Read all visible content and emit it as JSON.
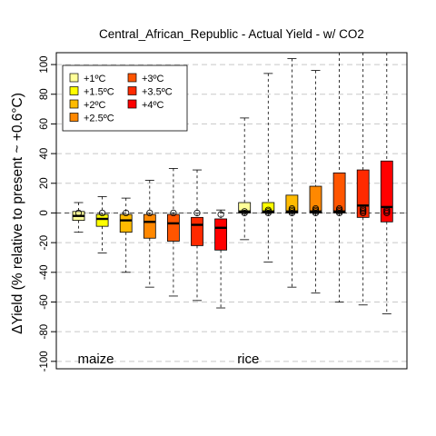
{
  "chart_data": {
    "type": "box",
    "title": "Central_African_Republic - Actual Yield - w/ CO2",
    "xlabel": "",
    "ylabel": "ΔYield (% relative to present ~ +0.6°C)",
    "ylim": [
      -105,
      108
    ],
    "yticks": [
      -100,
      -80,
      -60,
      -40,
      -20,
      0,
      20,
      40,
      60,
      80,
      100
    ],
    "grid": true,
    "legend_position": "top-left",
    "groups": [
      {
        "label": "maize",
        "first_index": 0,
        "last_index": 6
      },
      {
        "label": "rice",
        "first_index": 7,
        "last_index": 13
      }
    ],
    "legend": [
      {
        "label": "+1ºC",
        "color": "#FFFF99"
      },
      {
        "label": "+1.5ºC",
        "color": "#FFFF00"
      },
      {
        "label": "+2ºC",
        "color": "#FFBB00"
      },
      {
        "label": "+2.5ºC",
        "color": "#FF8800"
      },
      {
        "label": "+3ºC",
        "color": "#FF5500"
      },
      {
        "label": "+3.5ºC",
        "color": "#FF2A00"
      },
      {
        "label": "+4ºC",
        "color": "#FF0000"
      }
    ],
    "boxes": [
      {
        "crop": "maize",
        "warming": "+1ºC",
        "color": "#FFFF99",
        "min": -13,
        "q1": -5,
        "median": -2,
        "q3": 1,
        "max": 7,
        "outliers": [
          0
        ]
      },
      {
        "crop": "maize",
        "warming": "+1.5ºC",
        "color": "#FFFF00",
        "min": -27,
        "q1": -9,
        "median": -4,
        "q3": -1,
        "max": 11,
        "outliers": [
          0
        ]
      },
      {
        "crop": "maize",
        "warming": "+2ºC",
        "color": "#FFBB00",
        "min": -40,
        "q1": -13,
        "median": -5,
        "q3": -1,
        "max": 10,
        "outliers": [
          0
        ]
      },
      {
        "crop": "maize",
        "warming": "+2.5ºC",
        "color": "#FF8800",
        "min": -50,
        "q1": -17,
        "median": -6,
        "q3": -1,
        "max": 22,
        "outliers": [
          0
        ]
      },
      {
        "crop": "maize",
        "warming": "+3ºC",
        "color": "#FF5500",
        "min": -56,
        "q1": -19,
        "median": -7,
        "q3": -1,
        "max": 30,
        "outliers": [
          0
        ]
      },
      {
        "crop": "maize",
        "warming": "+3.5ºC",
        "color": "#FF2A00",
        "min": -59,
        "q1": -22,
        "median": -8,
        "q3": -3,
        "max": 29,
        "outliers": [
          0
        ]
      },
      {
        "crop": "maize",
        "warming": "+4ºC",
        "color": "#FF0000",
        "min": -64,
        "q1": -25,
        "median": -10,
        "q3": -4,
        "max": 2,
        "outliers": [
          -1
        ]
      },
      {
        "crop": "rice",
        "warming": "+1ºC",
        "color": "#FFFF99",
        "min": -18,
        "q1": 0,
        "median": 1,
        "q3": 7,
        "max": 64,
        "outliers": [
          0,
          1
        ]
      },
      {
        "crop": "rice",
        "warming": "+1.5ºC",
        "color": "#FFFF00",
        "min": -33,
        "q1": 0,
        "median": 1,
        "q3": 7,
        "max": 94,
        "outliers": [
          0,
          1,
          2
        ]
      },
      {
        "crop": "rice",
        "warming": "+2ºC",
        "color": "#FFBB00",
        "min": -50,
        "q1": 0,
        "median": 1,
        "q3": 12,
        "max": 104,
        "outliers": [
          0,
          1,
          2,
          3
        ]
      },
      {
        "crop": "rice",
        "warming": "+2.5ºC",
        "color": "#FF8800",
        "min": -54,
        "q1": 0,
        "median": 1,
        "q3": 18,
        "max": 96,
        "outliers": [
          0,
          1,
          2,
          3
        ]
      },
      {
        "crop": "rice",
        "warming": "+3ºC",
        "color": "#FF5500",
        "min": -60,
        "q1": 0,
        "median": 1,
        "q3": 27,
        "max": 108,
        "outliers": [
          0,
          1,
          2,
          3
        ]
      },
      {
        "crop": "rice",
        "warming": "+3.5ºC",
        "color": "#FF2A00",
        "min": -62,
        "q1": -3,
        "median": 5,
        "q3": 29,
        "max": 108,
        "outliers": [
          0,
          1,
          2,
          3
        ]
      },
      {
        "crop": "rice",
        "warming": "+4ºC",
        "color": "#FF0000",
        "min": -68,
        "q1": -6,
        "median": 4,
        "q3": 35,
        "max": 108,
        "outliers": [
          0,
          1,
          2
        ]
      }
    ]
  }
}
